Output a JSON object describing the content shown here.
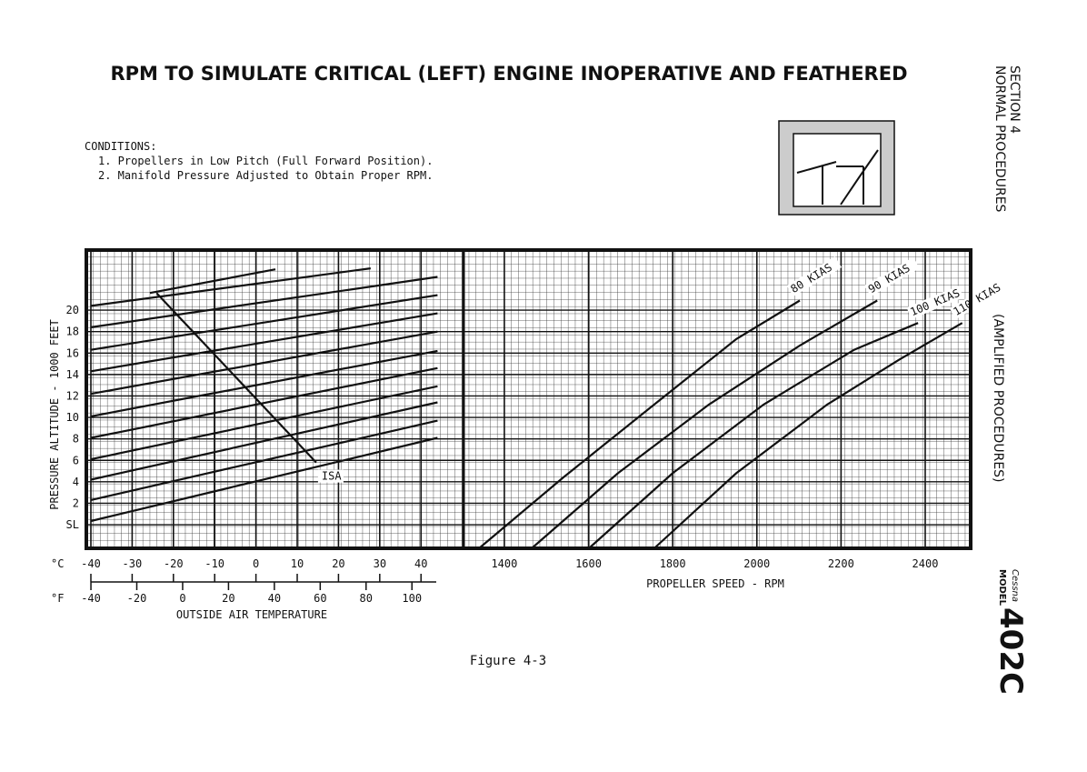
{
  "header": {
    "title": "RPM TO SIMULATE CRITICAL (LEFT) ENGINE INOPERATIVE AND FEATHERED"
  },
  "conditions": {
    "heading": "CONDITIONS:",
    "items": [
      "1. Propellers in Low Pitch (Full Forward Position).",
      "2. Manifold Pressure Adjusted to Obtain Proper RPM."
    ]
  },
  "sidebar": {
    "section": "SECTION 4",
    "section_title": "NORMAL PROCEDURES",
    "subtitle": "(AMPLIFIED PROCEDURES)",
    "brand": "Cessna",
    "model_label": "MODEL",
    "model": "402C"
  },
  "caption": "Figure 4-3",
  "chart_data": [
    {
      "type": "line",
      "ylabel": "PRESSURE ALTITUDE - 1000 FEET",
      "xlabel": "OUTSIDE AIR TEMPERATURE",
      "x_unit": "°C",
      "x2_unit": "°F",
      "xlim": [
        -41.1,
        50.3
      ],
      "xticks": [
        -40,
        -30,
        -20,
        -10,
        0,
        10,
        20,
        30,
        40
      ],
      "x2lim": [
        -42.0,
        122.5
      ],
      "x2ticks": [
        -40,
        -20,
        0,
        20,
        40,
        60,
        80,
        100
      ],
      "ylim": [
        -2.2,
        25.6
      ],
      "yticks": [
        {
          "value": 0,
          "label": "SL"
        },
        2,
        4,
        6,
        8,
        10,
        12,
        14,
        16,
        18,
        20
      ],
      "color": "#111",
      "series": [
        {
          "x": [
            -40,
            44
          ],
          "values": [
            0.34,
            8.1
          ]
        },
        {
          "x": [
            -40,
            44
          ],
          "values": [
            2.3,
            9.7
          ]
        },
        {
          "x": [
            -40,
            44
          ],
          "values": [
            4.2,
            11.4
          ]
        },
        {
          "x": [
            -40,
            44
          ],
          "values": [
            6.1,
            12.9
          ]
        },
        {
          "x": [
            -40,
            44
          ],
          "values": [
            8.1,
            14.6
          ]
        },
        {
          "x": [
            -40,
            44
          ],
          "values": [
            10.1,
            16.2
          ]
        },
        {
          "x": [
            -40,
            44
          ],
          "values": [
            12.2,
            18.0
          ]
        },
        {
          "x": [
            -40,
            44
          ],
          "values": [
            14.3,
            19.7
          ]
        },
        {
          "x": [
            -40,
            44
          ],
          "values": [
            16.3,
            21.4
          ]
        },
        {
          "x": [
            -40,
            44
          ],
          "values": [
            18.4,
            23.1
          ]
        },
        {
          "x": [
            -40,
            27.8
          ],
          "values": [
            20.4,
            23.9
          ]
        },
        {
          "x": [
            -25.7,
            4.7
          ],
          "values": [
            21.6,
            23.8
          ]
        },
        {
          "name": "ISA",
          "x": [
            -24.1,
            14.6
          ],
          "values": [
            21.6,
            5.8
          ]
        }
      ]
    },
    {
      "type": "line",
      "xlabel": "PROPELLER SPEED - RPM",
      "xlim": [
        1303,
        2508
      ],
      "xticks": [
        1400,
        1600,
        1800,
        2000,
        2200,
        2400
      ],
      "ylim": [
        -2.2,
        25.6
      ],
      "color": "#111",
      "series": [
        {
          "name": "80 KIAS",
          "x": [
            1340,
            1540,
            1756,
            1951,
            2102
          ],
          "values": [
            -2.2,
            4.4,
            11.2,
            17.3,
            20.9
          ]
        },
        {
          "name": "90 KIAS",
          "x": [
            1465,
            1670,
            1886,
            2102,
            2286
          ],
          "values": [
            -2.2,
            4.8,
            11.2,
            16.7,
            20.9
          ]
        },
        {
          "name": "100 KIAS",
          "x": [
            1601,
            1800,
            2016,
            2231,
            2383
          ],
          "values": [
            -2.2,
            4.8,
            11.2,
            16.3,
            18.8
          ]
        },
        {
          "name": "110 KIAS",
          "x": [
            1756,
            1951,
            2167,
            2339,
            2488
          ],
          "values": [
            -2.2,
            4.8,
            11.2,
            15.4,
            18.8
          ]
        }
      ]
    }
  ]
}
